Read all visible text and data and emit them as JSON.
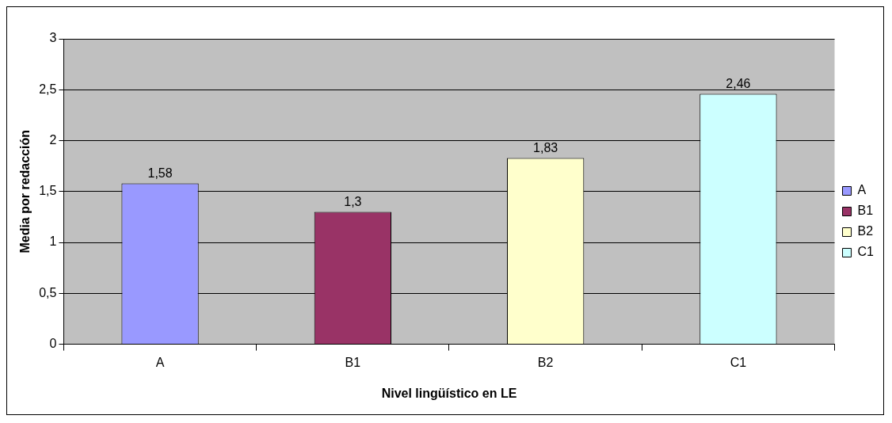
{
  "chart_data": {
    "type": "bar",
    "xlabel": "Nivel lingüístico en LE",
    "ylabel": "Media por redacción",
    "categories": [
      "A",
      "B1",
      "B2",
      "C1"
    ],
    "series": [
      {
        "name": "A",
        "color": "#9999ff",
        "values": [
          1.58,
          null,
          null,
          null
        ],
        "value_labels": [
          "1,58",
          null,
          null,
          null
        ]
      },
      {
        "name": "B1",
        "color": "#993366",
        "values": [
          null,
          1.3,
          null,
          null
        ],
        "value_labels": [
          null,
          "1,3",
          null,
          null
        ]
      },
      {
        "name": "B2",
        "color": "#ffffcc",
        "values": [
          null,
          null,
          1.83,
          null
        ],
        "value_labels": [
          null,
          null,
          "1,83",
          null
        ]
      },
      {
        "name": "C1",
        "color": "#ccffff",
        "values": [
          null,
          null,
          null,
          2.46
        ],
        "value_labels": [
          null,
          null,
          null,
          "2,46"
        ]
      }
    ],
    "ylim": [
      0,
      3
    ],
    "yticks": [
      0,
      {
        "value": 0.5,
        "label": "0,5"
      },
      1,
      {
        "value": 1.5,
        "label": "1,5"
      },
      2,
      {
        "value": 2.5,
        "label": "2,5"
      },
      3
    ],
    "grid": "y",
    "legend": "right"
  }
}
